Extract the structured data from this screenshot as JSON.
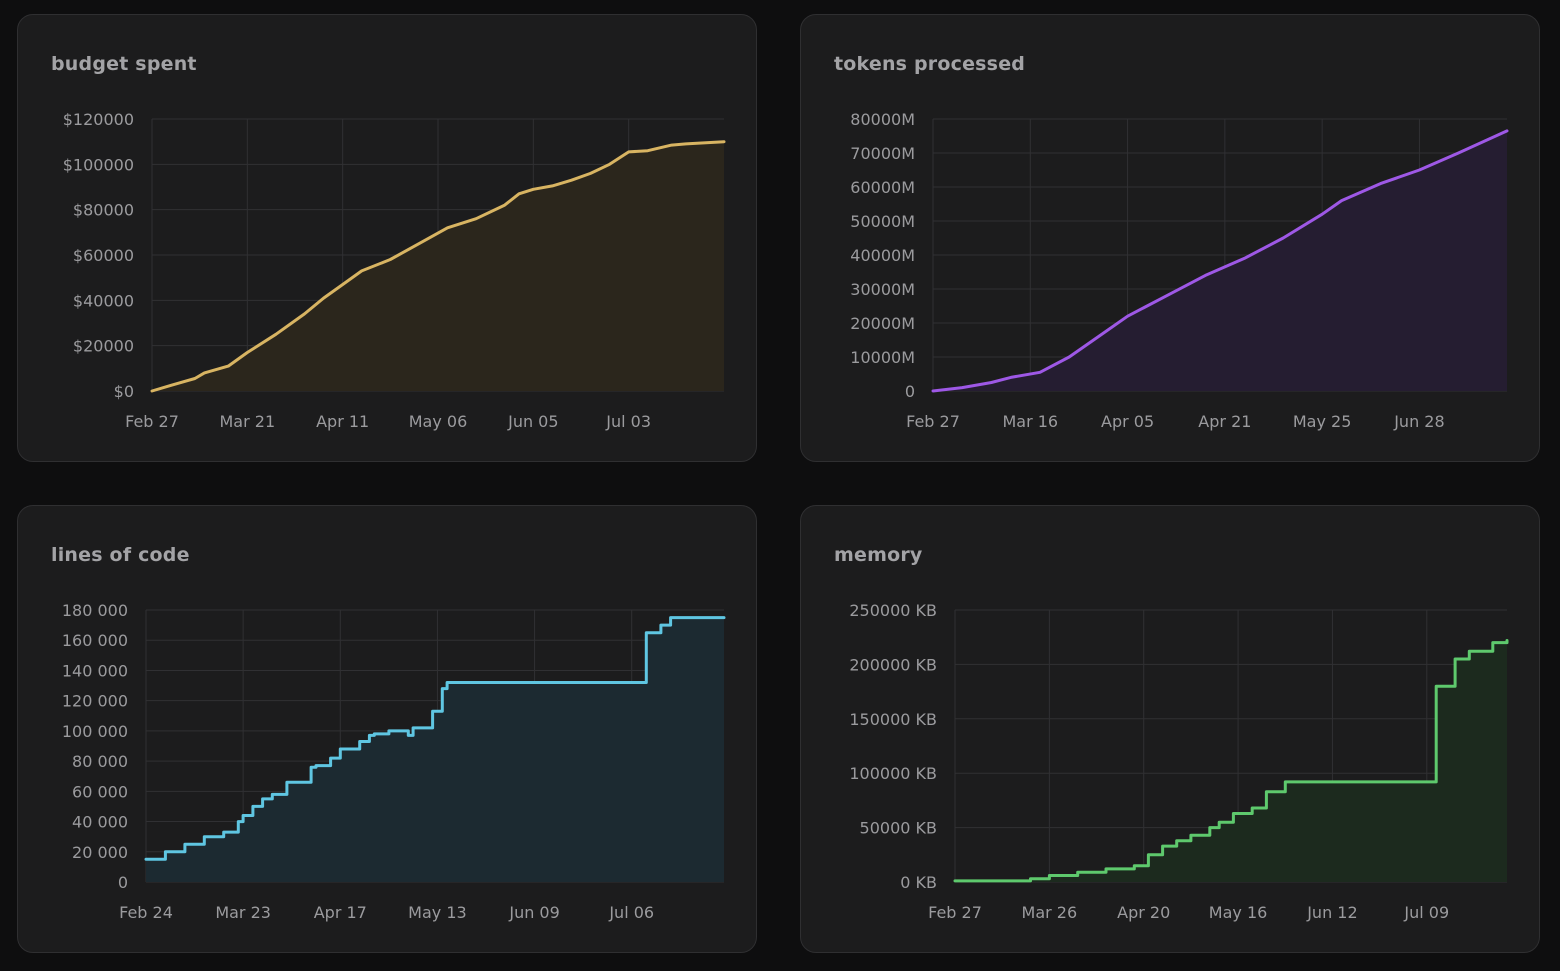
{
  "chart_data": [
    {
      "id": "budget",
      "type": "area",
      "title": "budget spent",
      "color": "#d8b462",
      "fill": "#2b261c",
      "x_ticks": [
        "Feb 27",
        "Mar 21",
        "Apr 11",
        "May 06",
        "Jun 05",
        "Jul 03"
      ],
      "y_ticks": [
        "$120000",
        "$100000",
        "$80000",
        "$60000",
        "$40000",
        "$20000",
        "$0"
      ],
      "ylim": [
        0,
        120000
      ],
      "xlim": [
        0,
        6
      ],
      "grid": true,
      "step": false,
      "x": [
        0,
        0.2,
        0.45,
        0.55,
        0.8,
        1.0,
        1.3,
        1.6,
        1.8,
        2.0,
        2.2,
        2.5,
        2.8,
        3.1,
        3.4,
        3.7,
        3.85,
        4.0,
        4.2,
        4.4,
        4.6,
        4.8,
        5.0,
        5.2,
        5.4,
        5.45,
        5.6,
        6.0
      ],
      "values": [
        0,
        2500,
        5500,
        8000,
        11000,
        17000,
        25000,
        34000,
        41000,
        47000,
        53000,
        58000,
        65000,
        72000,
        76000,
        82000,
        87000,
        89000,
        90500,
        93000,
        96000,
        100000,
        105500,
        106000,
        108000,
        108500,
        109000,
        110000
      ]
    },
    {
      "id": "tokens",
      "type": "area",
      "title": "tokens processed",
      "color": "#9e58e6",
      "fill": "#251d31",
      "x_ticks": [
        "Feb 27",
        "Mar 16",
        "Apr 05",
        "Apr 21",
        "May 25",
        "Jun 28"
      ],
      "y_ticks": [
        "80000M",
        "70000M",
        "60000M",
        "50000M",
        "40000M",
        "30000M",
        "20000M",
        "10000M",
        "0"
      ],
      "ylim": [
        0,
        80000
      ],
      "xlim": [
        0,
        5.9
      ],
      "grid": true,
      "step": false,
      "x": [
        0,
        0.3,
        0.6,
        0.8,
        1.1,
        1.4,
        1.7,
        2.0,
        2.4,
        2.8,
        3.2,
        3.6,
        4.0,
        4.2,
        4.6,
        5.0,
        5.4,
        5.9
      ],
      "values": [
        0,
        1000,
        2500,
        4000,
        5500,
        10000,
        16000,
        22000,
        28000,
        34000,
        39000,
        45000,
        52000,
        56000,
        61000,
        65000,
        70000,
        76500
      ]
    },
    {
      "id": "loc",
      "type": "area",
      "title": "lines of code",
      "color": "#5fc6e2",
      "fill": "#1c2a31",
      "x_ticks": [
        "Feb 24",
        "Mar 23",
        "Apr 17",
        "May 13",
        "Jun 09",
        "Jul 06"
      ],
      "y_ticks": [
        "180 000",
        "160 000",
        "140 000",
        "120 000",
        "100 000",
        "80 000",
        "60 000",
        "40 000",
        "20 000",
        "0"
      ],
      "ylim": [
        0,
        180000
      ],
      "xlim": [
        0,
        5.95
      ],
      "grid": true,
      "step": true,
      "x": [
        0,
        0.2,
        0.4,
        0.6,
        0.8,
        0.95,
        1.0,
        1.1,
        1.2,
        1.3,
        1.45,
        1.7,
        1.75,
        1.9,
        2.0,
        2.2,
        2.3,
        2.35,
        2.5,
        2.7,
        2.75,
        2.95,
        3.05,
        3.1,
        3.6,
        4.4,
        5.15,
        5.3,
        5.4,
        5.95
      ],
      "values": [
        15000,
        20000,
        25000,
        30000,
        33000,
        40000,
        44000,
        50000,
        55000,
        58000,
        66000,
        76000,
        77000,
        82000,
        88000,
        93000,
        97000,
        98000,
        100000,
        97000,
        102000,
        113000,
        128000,
        132000,
        132000,
        132000,
        165000,
        170000,
        175000,
        175000
      ]
    },
    {
      "id": "memory",
      "type": "area",
      "title": "memory",
      "color": "#5ec96d",
      "fill": "#1c2a1e",
      "x_ticks": [
        "Feb 27",
        "Mar 26",
        "Apr 20",
        "May 16",
        "Jun 12",
        "Jul 09"
      ],
      "y_ticks": [
        "250000 KB",
        "200000 KB",
        "150000 KB",
        "100000 KB",
        "50000 KB",
        "0 KB"
      ],
      "ylim": [
        0,
        250000
      ],
      "xlim": [
        0,
        5.85
      ],
      "grid": true,
      "step": true,
      "x": [
        0,
        0.8,
        1.0,
        1.3,
        1.6,
        1.9,
        2.05,
        2.2,
        2.35,
        2.5,
        2.7,
        2.8,
        2.95,
        3.15,
        3.3,
        3.5,
        4.3,
        5.0,
        5.1,
        5.3,
        5.45,
        5.7,
        5.85
      ],
      "values": [
        1000,
        3000,
        6000,
        9000,
        12000,
        15000,
        25000,
        33000,
        38000,
        43000,
        50000,
        55000,
        63000,
        68000,
        83000,
        92000,
        92000,
        92000,
        180000,
        205000,
        212000,
        220000,
        222000
      ]
    }
  ]
}
